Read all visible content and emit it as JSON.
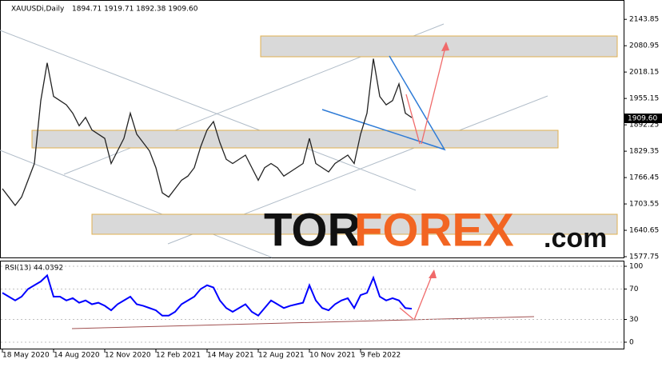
{
  "chart_data": [
    {
      "type": "line",
      "title": "XAUUSDi,Daily",
      "subtitle": "1894.71 1919.71 1892.38 1909.60",
      "last_price_label": "1909.60",
      "categories": [
        "18 May 2020",
        null,
        null,
        null,
        null,
        null,
        null,
        null,
        "14 Aug 2020",
        null,
        null,
        null,
        null,
        null,
        null,
        null,
        "12 Nov 2020",
        null,
        null,
        null,
        null,
        null,
        null,
        null,
        "12 Feb 2021",
        null,
        null,
        null,
        null,
        null,
        null,
        null,
        "14 May 2021",
        null,
        null,
        null,
        null,
        null,
        null,
        null,
        "12 Aug 2021",
        null,
        null,
        null,
        null,
        null,
        null,
        null,
        "10 Nov 2021",
        null,
        null,
        null,
        null,
        null,
        null,
        null,
        "9 Feb 2022",
        null,
        null,
        null,
        null,
        null,
        null,
        null,
        null
      ],
      "series": [
        {
          "name": "XAUUSDi",
          "color": "#222222",
          "values": [
            1740,
            1720,
            1700,
            1720,
            1760,
            1800,
            1950,
            2040,
            1960,
            1950,
            1940,
            1920,
            1890,
            1910,
            1880,
            1870,
            1860,
            1800,
            1830,
            1860,
            1920,
            1870,
            1850,
            1830,
            1790,
            1730,
            1720,
            1740,
            1760,
            1770,
            1790,
            1840,
            1880,
            1900,
            1850,
            1810,
            1800,
            1810,
            1820,
            1790,
            1760,
            1790,
            1800,
            1790,
            1770,
            1780,
            1790,
            1800,
            1860,
            1800,
            1790,
            1780,
            1800,
            1810,
            1820,
            1800,
            1870,
            1920,
            2050,
            1960,
            1940,
            1950,
            1990,
            1920,
            1909.6
          ]
        }
      ],
      "ylim": [
        1574,
        2190
      ],
      "yticks": [
        2143.85,
        2080.95,
        2018.15,
        1955.15,
        1892.25,
        1829.35,
        1766.45,
        1703.55,
        1640.65,
        1577.75
      ]
    },
    {
      "type": "line",
      "title": "RSI(13) 44.0392",
      "series": [
        {
          "name": "RSI(13)",
          "color": "#0000ff",
          "values": [
            65,
            60,
            55,
            60,
            70,
            75,
            80,
            88,
            60,
            60,
            55,
            58,
            52,
            55,
            50,
            52,
            48,
            42,
            50,
            55,
            60,
            50,
            48,
            45,
            42,
            35,
            35,
            40,
            50,
            55,
            60,
            70,
            75,
            72,
            55,
            45,
            40,
            45,
            50,
            40,
            35,
            45,
            55,
            50,
            45,
            48,
            50,
            52,
            75,
            55,
            45,
            42,
            50,
            55,
            58,
            45,
            62,
            65,
            85,
            60,
            55,
            58,
            55,
            45,
            44.0392
          ]
        }
      ],
      "ylim": [
        -9.5,
        107.4
      ],
      "yticks": [
        100,
        70,
        30,
        0
      ]
    }
  ],
  "watermark": [
    "TOR",
    "FOREX",
    ".com"
  ]
}
